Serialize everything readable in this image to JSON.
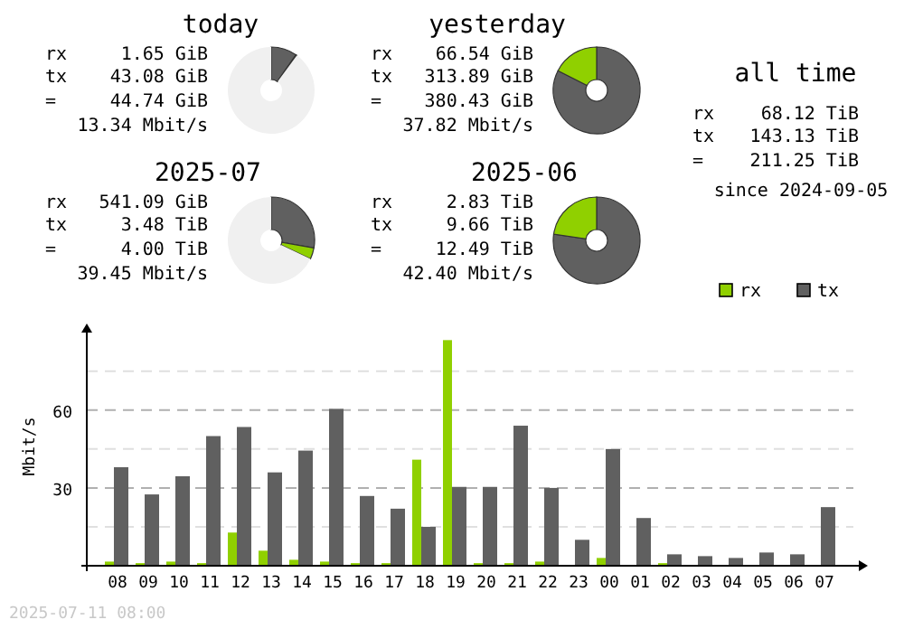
{
  "chart_data": [
    {
      "type": "donut",
      "title": "today",
      "categories": [
        null,
        null,
        null
      ],
      "values": [
        9.7,
        0.4,
        89.9
      ],
      "colors": [
        "#606060",
        "#90d000",
        "#f0f0f0"
      ],
      "annotations": [
        "rx",
        "1.65 GiB",
        "tx",
        "43.08 GiB",
        "=",
        "44.74 GiB",
        "13.34 Mbit/s"
      ]
    },
    {
      "type": "donut",
      "title": "yesterday",
      "categories": [
        null,
        null
      ],
      "values": [
        82.5,
        17.5
      ],
      "colors": [
        "#606060",
        "#90d000"
      ],
      "annotations": [
        "rx",
        "66.54 GiB",
        "tx",
        "313.89 GiB",
        "=",
        "380.43 GiB",
        "37.82 Mbit/s"
      ]
    },
    {
      "type": "other",
      "title": "all time",
      "annotations": [
        "rx",
        "68.12 TiB",
        "tx",
        "143.13 TiB",
        "=",
        "211.25 TiB",
        "since 2024-09-05"
      ]
    },
    {
      "type": "donut",
      "title": "2025-07",
      "categories": [
        null,
        null,
        null
      ],
      "values": [
        27.8,
        4.2,
        68
      ],
      "colors": [
        "#606060",
        "#90d000",
        "#f0f0f0"
      ],
      "annotations": [
        "rx",
        "541.09 GiB",
        "tx",
        "3.48 TiB",
        "=",
        "4.00 TiB",
        "39.45 Mbit/s"
      ]
    },
    {
      "type": "donut",
      "title": "2025-06",
      "categories": [
        null,
        null
      ],
      "values": [
        77.3,
        22.7
      ],
      "colors": [
        "#606060",
        "#90d000"
      ],
      "annotations": [
        "rx",
        "2.83 TiB",
        "tx",
        "9.66 TiB",
        "=",
        "12.49 TiB",
        "42.40 Mbit/s"
      ]
    },
    {
      "type": "bar",
      "ylabel": "Mbit/s",
      "categories": [
        "08",
        "09",
        "10",
        "11",
        "12",
        "13",
        "14",
        "15",
        "16",
        "17",
        "18",
        "19",
        "20",
        "21",
        "22",
        "23",
        "00",
        "01",
        "02",
        "03",
        "04",
        "05",
        "06",
        "07"
      ],
      "series": [
        {
          "name": "rx",
          "color": "#90d000",
          "values": [
            1.6,
            1,
            1.6,
            1,
            12.8,
            5.8,
            2.3,
            1.6,
            1,
            1,
            40.9,
            87,
            1,
            1,
            1.6,
            0,
            3,
            0,
            1,
            0,
            0,
            0,
            0,
            0
          ]
        },
        {
          "name": "tx",
          "color": "#606060",
          "values": [
            38,
            27.5,
            34.5,
            50,
            53.5,
            36,
            44.4,
            60.5,
            26.9,
            22,
            15,
            30.4,
            30.4,
            54,
            30,
            10,
            45,
            18.4,
            4.4,
            3.7,
            3,
            5.1,
            4.4,
            22.6
          ]
        }
      ],
      "ylim": [
        0,
        92
      ],
      "yticks": [
        {
          "value": 15,
          "label": null
        },
        30,
        {
          "value": 45,
          "label": null
        },
        60,
        {
          "value": 75,
          "label": null
        }
      ],
      "grid": "y",
      "legend": "top right",
      "annotations": [
        "2025-07-11 08:00"
      ]
    }
  ]
}
